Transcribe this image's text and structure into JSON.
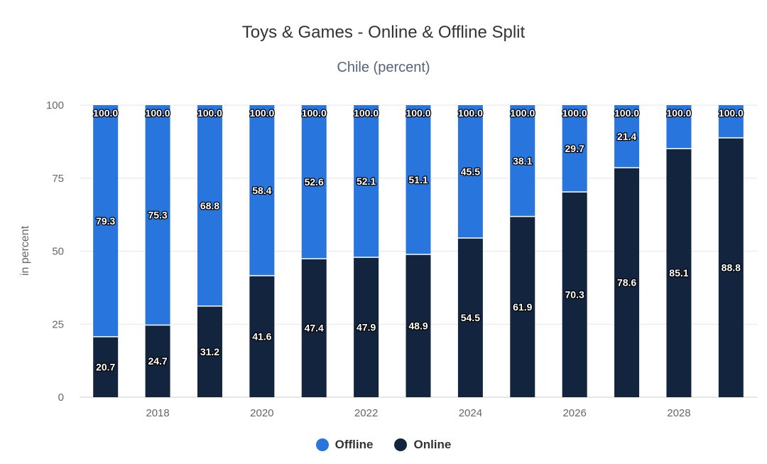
{
  "chart_data": {
    "type": "bar",
    "stacked": true,
    "title": "Toys & Games - Online & Offline Split",
    "subtitle": "Chile (percent)",
    "ylabel": "in percent",
    "xlabel": "",
    "ylim": [
      0,
      100
    ],
    "yticks": [
      0,
      25,
      50,
      75,
      100
    ],
    "categories": [
      "2017",
      "2018",
      "2019",
      "2020",
      "2021",
      "2022",
      "2023",
      "2024",
      "2025",
      "2026",
      "2027",
      "2028",
      "2029"
    ],
    "x_tick_labels": [
      "2018",
      "2020",
      "2022",
      "2024",
      "2026",
      "2028"
    ],
    "series": [
      {
        "name": "Online",
        "color": "#13253e",
        "values": [
          20.7,
          24.7,
          31.2,
          41.6,
          47.4,
          47.9,
          48.9,
          54.5,
          61.9,
          70.3,
          78.6,
          85.1,
          88.8
        ]
      },
      {
        "name": "Offline",
        "color": "#2876dd",
        "values": [
          79.3,
          75.3,
          68.8,
          58.4,
          52.6,
          52.1,
          51.1,
          45.5,
          38.1,
          29.7,
          21.4,
          14.9,
          11.2
        ]
      }
    ],
    "offline_labels": [
      "79.3",
      "75.3",
      "68.8",
      "58.4",
      "52.6",
      "52.1",
      "51.1",
      "45.5",
      "38.1",
      "29.7",
      "21.4",
      "",
      ""
    ],
    "total_labels": [
      "100.0",
      "100.0",
      "100.0",
      "100.0",
      "100.0",
      "100.0",
      "100.0",
      "100.0",
      "100.0",
      "100.0",
      "100.0",
      "100.0",
      "100.0"
    ],
    "grid": true,
    "legend": {
      "position": "bottom",
      "entries": [
        {
          "label": "Offline",
          "color": "#2876dd"
        },
        {
          "label": "Online",
          "color": "#13253e"
        }
      ]
    }
  }
}
